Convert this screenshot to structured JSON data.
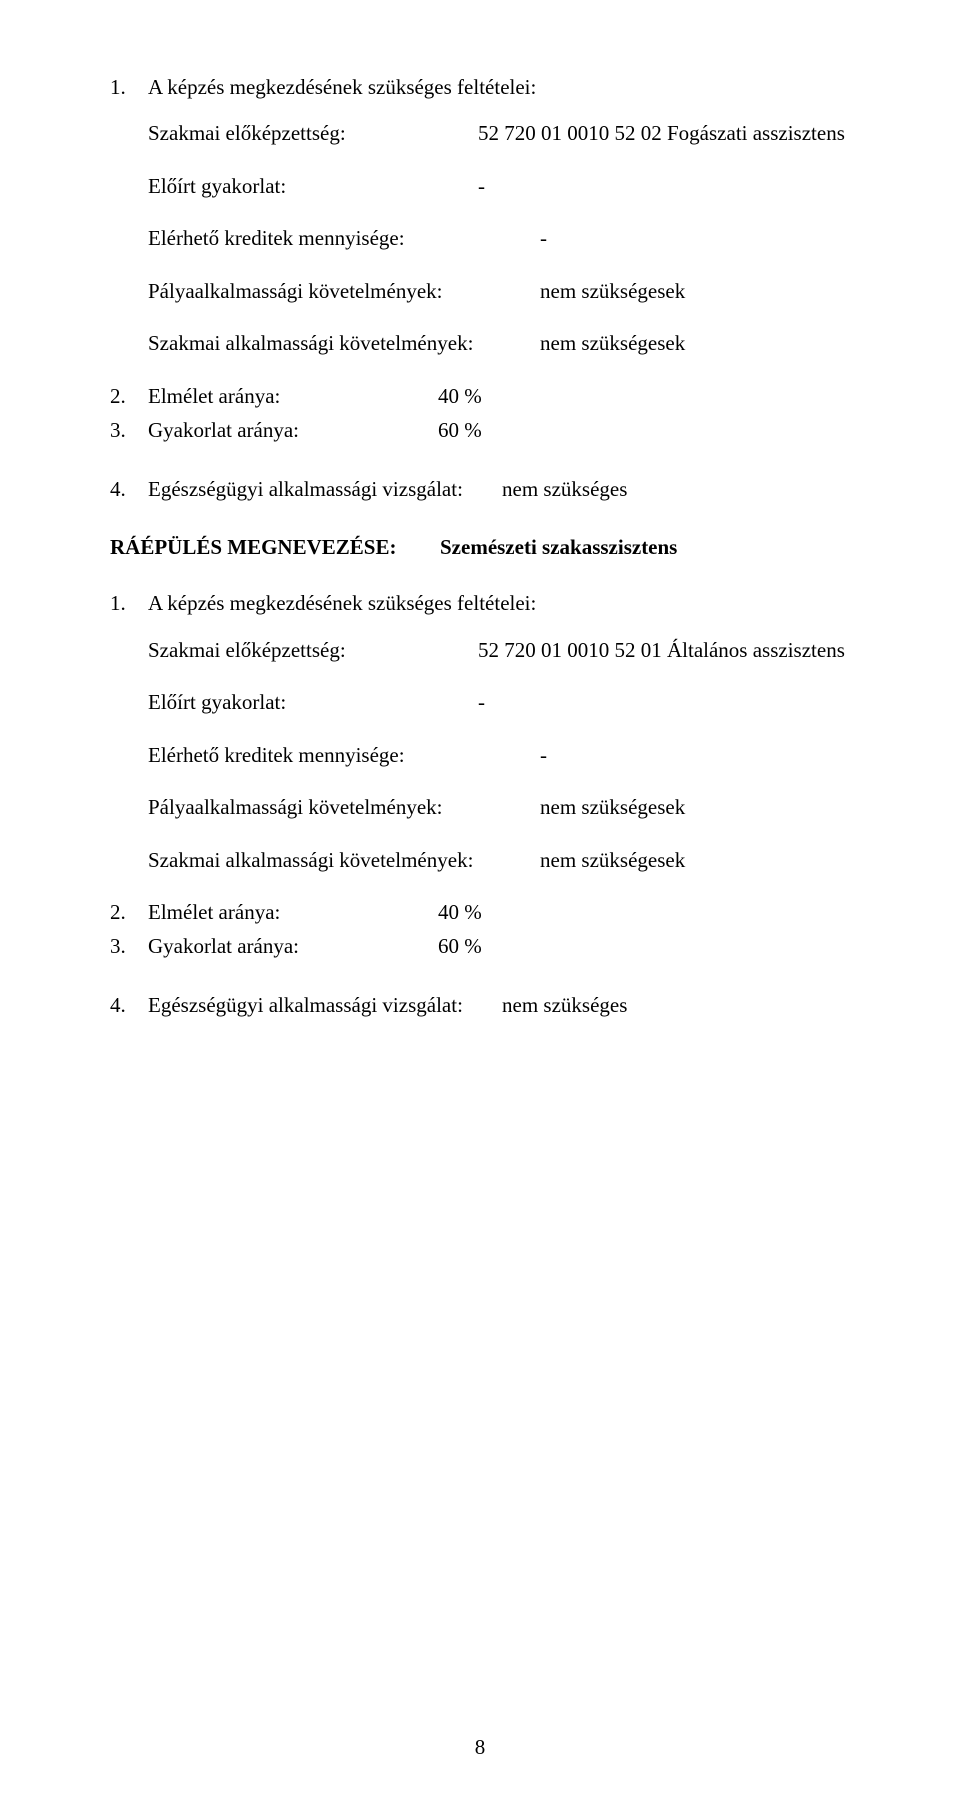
{
  "doc": {
    "text_color": "#000000",
    "bg_color": "#ffffff",
    "font_family": "Times New Roman",
    "base_fontsize_pt": 16,
    "page_number": "8"
  },
  "block1": {
    "item1": {
      "num": "1.",
      "text": "A képzés megkezdésének szükséges feltételei:"
    },
    "szakmai_elokepzettseg": {
      "label": "Szakmai előképzettség:",
      "value": "52 720 01 0010 52 02 Fogászati asszisztens"
    },
    "eloirt_gyakorlat": {
      "label": "Előírt gyakorlat:",
      "value": "-"
    },
    "elerheto_kreditek": {
      "label": "Elérhető kreditek mennyisége:",
      "value": "-"
    },
    "palyaalkalmassagi": {
      "label": "Pályaalkalmassági követelmények:",
      "value": "nem szükségesek"
    },
    "szakmai_alkalmassagi": {
      "label": "Szakmai alkalmassági követelmények:",
      "value": "nem szükségesek"
    },
    "stat2": {
      "num": "2.",
      "label": "Elmélet aránya:",
      "value": "40 %"
    },
    "stat3": {
      "num": "3.",
      "label": "Gyakorlat aránya:",
      "value": "60 %"
    },
    "item4": {
      "num": "4.",
      "label": "Egészségügyi alkalmassági vizsgálat:",
      "value": "nem szükséges"
    }
  },
  "raepules": {
    "label": "RÁÉPÜLÉS MEGNEVEZÉSE:",
    "value": "Szemészeti szakasszisztens"
  },
  "block2": {
    "item1": {
      "num": "1.",
      "text": "A képzés megkezdésének szükséges feltételei:"
    },
    "szakmai_elokepzettseg": {
      "label": "Szakmai előképzettség:",
      "value": "52 720 01 0010 52 01 Általános asszisztens"
    },
    "eloirt_gyakorlat": {
      "label": "Előírt gyakorlat:",
      "value": "-"
    },
    "elerheto_kreditek": {
      "label": "Elérhető kreditek mennyisége:",
      "value": "-"
    },
    "palyaalkalmassagi": {
      "label": "Pályaalkalmassági követelmények:",
      "value": "nem szükségesek"
    },
    "szakmai_alkalmassagi": {
      "label": "Szakmai alkalmassági követelmények:",
      "value": "nem szükségesek"
    },
    "stat2": {
      "num": "2.",
      "label": "Elmélet aránya:",
      "value": "40 %"
    },
    "stat3": {
      "num": "3.",
      "label": "Gyakorlat aránya:",
      "value": "60 %"
    },
    "item4": {
      "num": "4.",
      "label": "Egészségügyi alkalmassági vizsgálat:",
      "value": "nem szükséges"
    }
  }
}
